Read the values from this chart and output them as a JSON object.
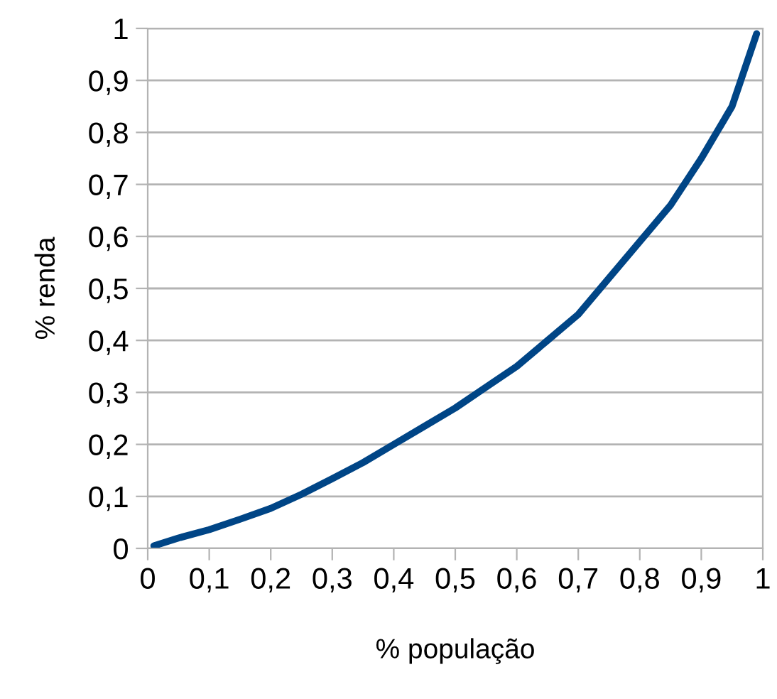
{
  "chart_data": {
    "type": "line",
    "xlabel": "% população",
    "ylabel": "% renda",
    "x": [
      0.01,
      0.05,
      0.1,
      0.15,
      0.2,
      0.25,
      0.3,
      0.35,
      0.4,
      0.45,
      0.5,
      0.55,
      0.6,
      0.65,
      0.7,
      0.75,
      0.8,
      0.85,
      0.9,
      0.95,
      0.99
    ],
    "series": [
      {
        "color": "#004586",
        "values": [
          0.005,
          0.02,
          0.036,
          0.056,
          0.077,
          0.104,
          0.134,
          0.165,
          0.2,
          0.235,
          0.27,
          0.31,
          0.35,
          0.4,
          0.45,
          0.52,
          0.59,
          0.66,
          0.75,
          0.85,
          0.99
        ]
      }
    ],
    "xlim": [
      0,
      1
    ],
    "ylim": [
      0,
      1
    ],
    "xticks": [
      0,
      {
        "value": 0.1,
        "label": "0,1"
      },
      {
        "value": 0.2,
        "label": "0,2"
      },
      {
        "value": 0.3,
        "label": "0,3"
      },
      {
        "value": 0.4,
        "label": "0,4"
      },
      {
        "value": 0.5,
        "label": "0,5"
      },
      {
        "value": 0.6,
        "label": "0,6"
      },
      {
        "value": 0.7,
        "label": "0,7"
      },
      {
        "value": 0.8,
        "label": "0,8"
      },
      {
        "value": 0.9,
        "label": "0,9"
      },
      1
    ],
    "yticks": [
      0,
      {
        "value": 0.1,
        "label": "0,1"
      },
      {
        "value": 0.2,
        "label": "0,2"
      },
      {
        "value": 0.3,
        "label": "0,3"
      },
      {
        "value": 0.4,
        "label": "0,4"
      },
      {
        "value": 0.5,
        "label": "0,5"
      },
      {
        "value": 0.6,
        "label": "0,6"
      },
      {
        "value": 0.7,
        "label": "0,7"
      },
      {
        "value": 0.8,
        "label": "0,8"
      },
      {
        "value": 0.9,
        "label": "0,9"
      },
      1
    ],
    "grid": "y",
    "marker": "none",
    "line_style": "solid"
  }
}
